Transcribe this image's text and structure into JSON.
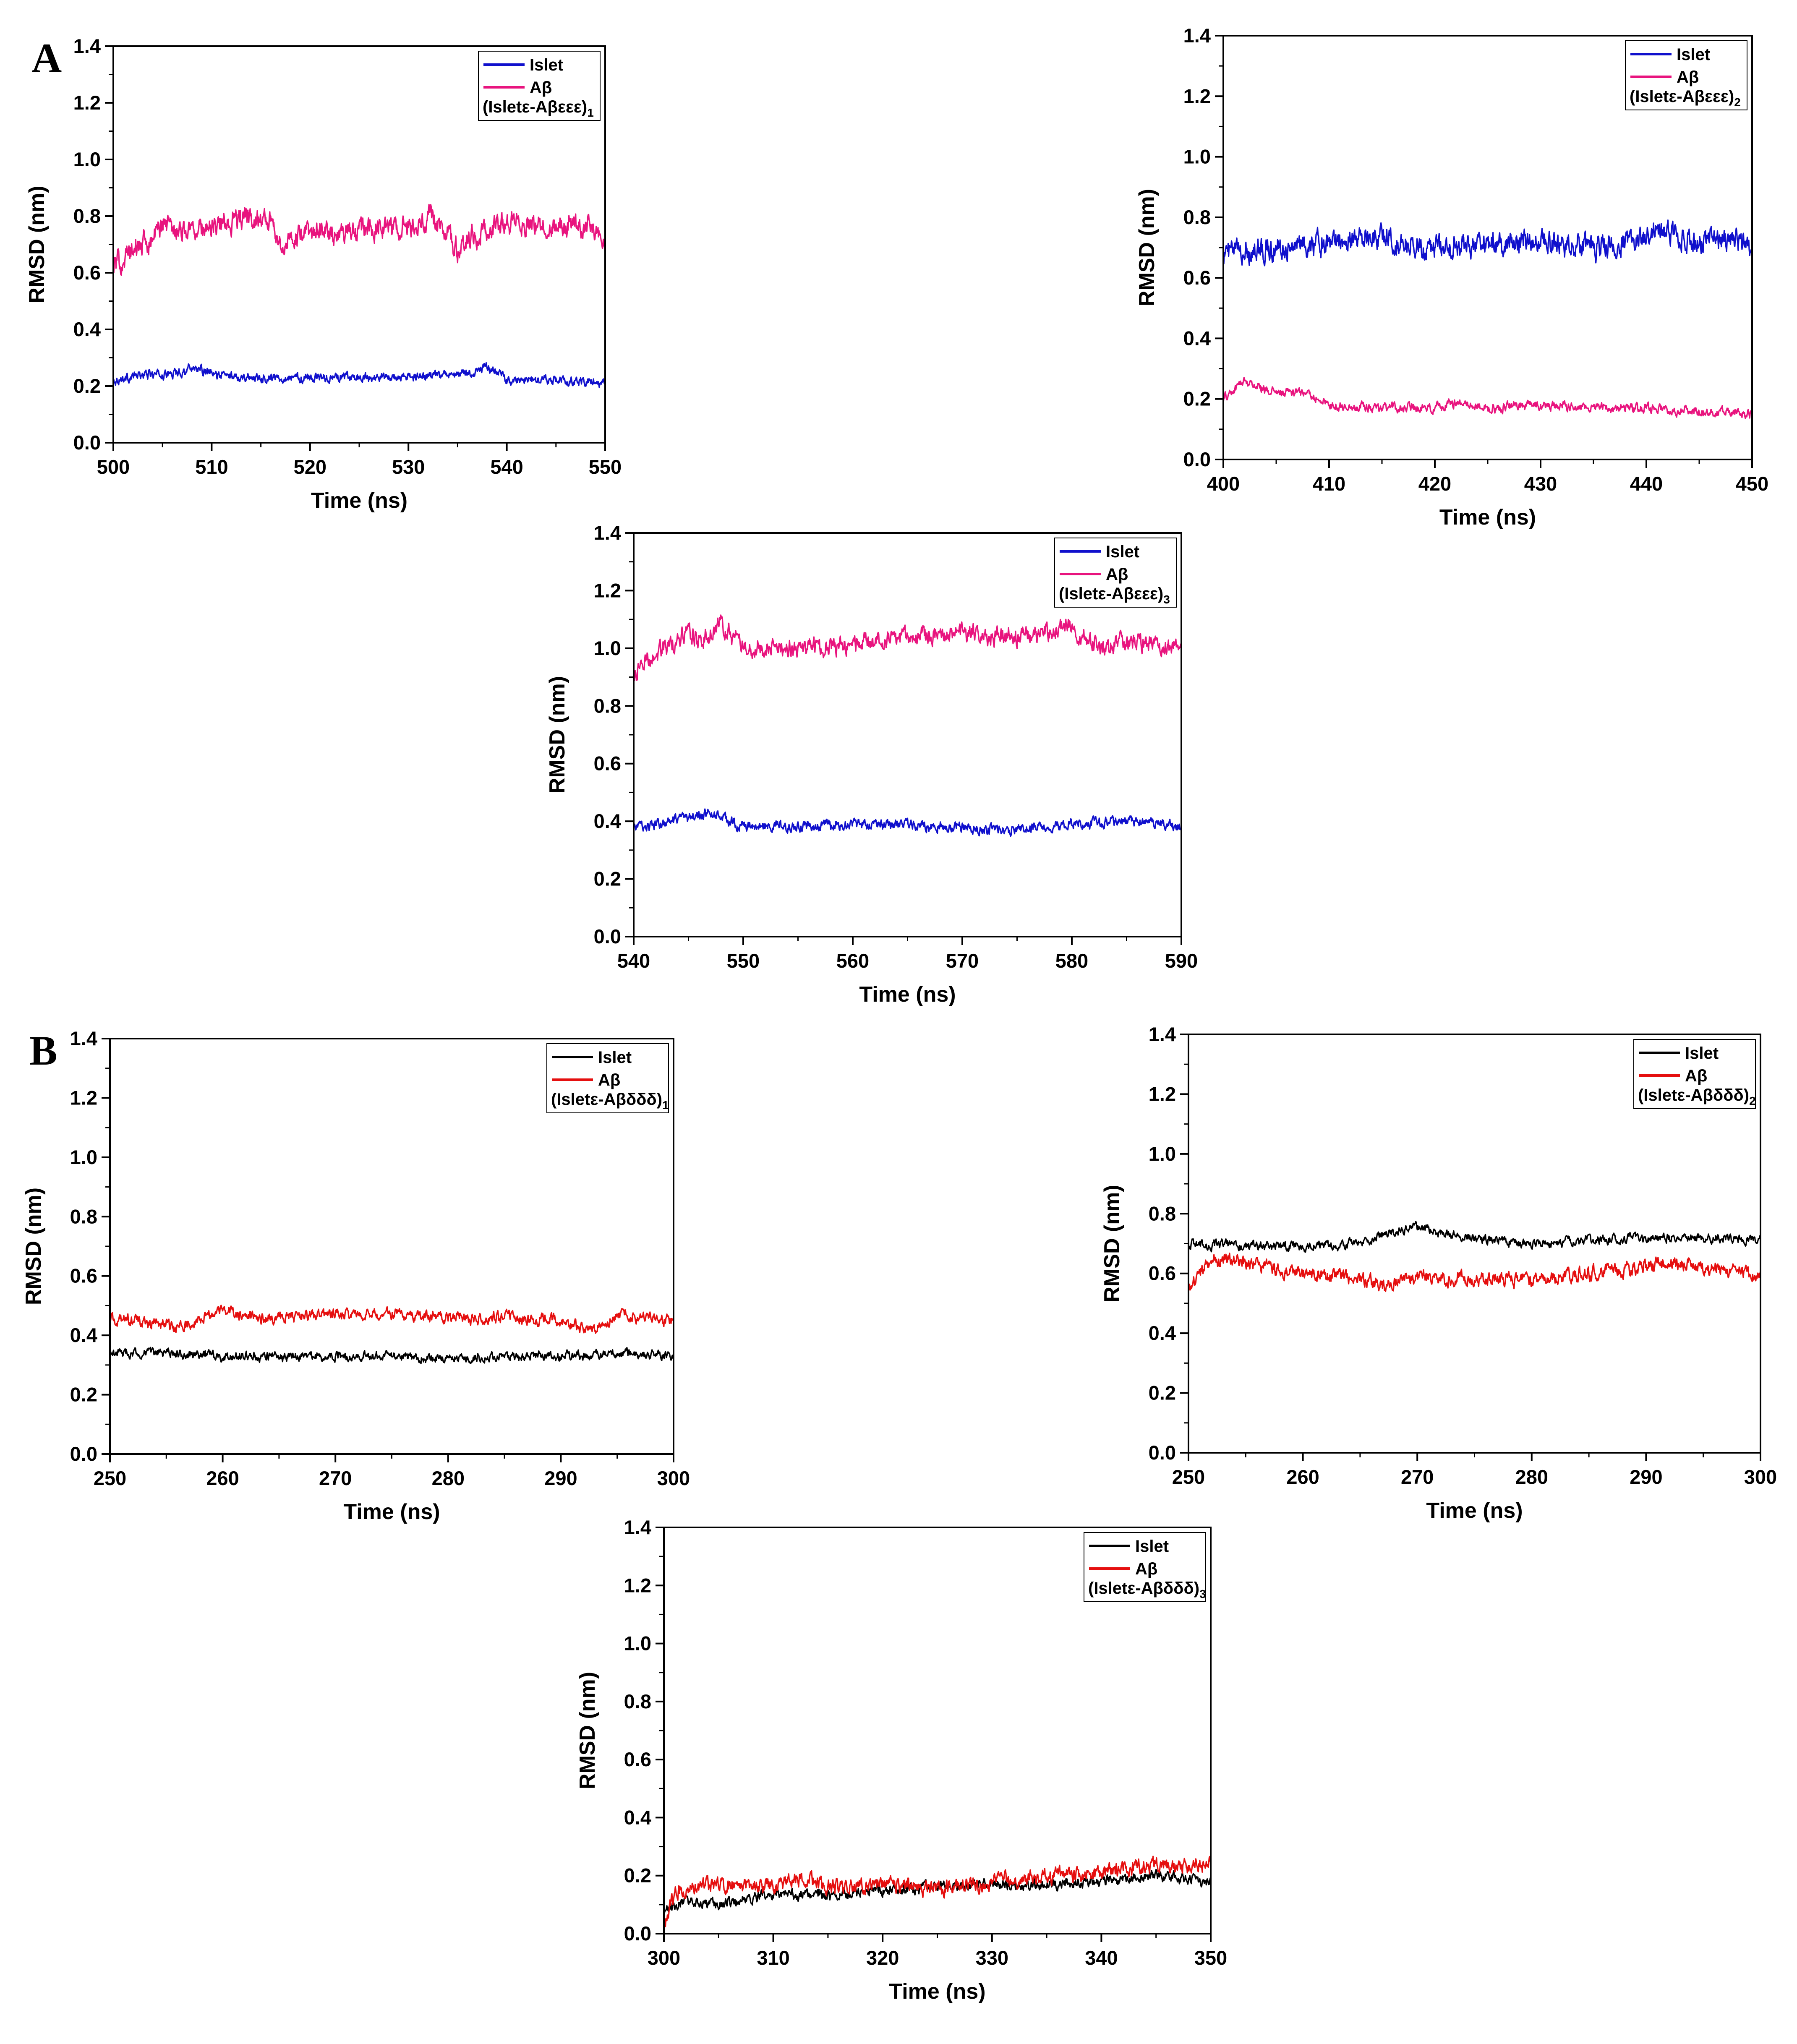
{
  "panel_labels": [
    "A",
    "B"
  ],
  "chart_data": [
    {
      "type": "line",
      "panel": "A",
      "xlabel": "Time (ns)",
      "ylabel": "RMSD (nm)",
      "xlim": [
        500,
        550
      ],
      "ylim": [
        0,
        1.4
      ],
      "xticks": [
        "500",
        "510",
        "520",
        "530",
        "540",
        "550"
      ],
      "yticks": [
        "0.0",
        "0.2",
        "0.4",
        "0.6",
        "0.8",
        "1.0",
        "1.2",
        "1.4"
      ],
      "legend": "top-right",
      "legend_caption": {
        "base": "(Isletε-Aβεεε)",
        "sub": "1"
      },
      "series": [
        {
          "name": "Islet",
          "color": "#1010cc",
          "noise": 0.012,
          "x": [
            500,
            503,
            505,
            507,
            508,
            510,
            515,
            520,
            525,
            530,
            535,
            537,
            538,
            540,
            545,
            550
          ],
          "y": [
            0.22,
            0.24,
            0.24,
            0.25,
            0.27,
            0.24,
            0.23,
            0.23,
            0.23,
            0.23,
            0.24,
            0.25,
            0.27,
            0.22,
            0.22,
            0.21
          ]
        },
        {
          "name": "Aβ",
          "color": "#e8147e",
          "noise": 0.03,
          "x": [
            500,
            502,
            504,
            505,
            507,
            510,
            514,
            516,
            517,
            520,
            525,
            530,
            532,
            534,
            535,
            536,
            538,
            540,
            545,
            548,
            550
          ],
          "y": [
            0.62,
            0.68,
            0.72,
            0.78,
            0.75,
            0.76,
            0.8,
            0.78,
            0.7,
            0.74,
            0.75,
            0.76,
            0.8,
            0.74,
            0.68,
            0.72,
            0.75,
            0.77,
            0.76,
            0.77,
            0.73
          ]
        }
      ]
    },
    {
      "type": "line",
      "panel": "A",
      "xlabel": "Time (ns)",
      "ylabel": "RMSD (nm)",
      "xlim": [
        400,
        450
      ],
      "ylim": [
        0,
        1.4
      ],
      "xticks": [
        "400",
        "410",
        "420",
        "430",
        "440",
        "450"
      ],
      "yticks": [
        "0.0",
        "0.2",
        "0.4",
        "0.6",
        "0.8",
        "1.0",
        "1.2",
        "1.4"
      ],
      "legend": "top-right",
      "legend_caption": {
        "base": "(Isletε-Aβεεε)",
        "sub": "2"
      },
      "series": [
        {
          "name": "Islet",
          "color": "#1010cc",
          "noise": 0.03,
          "x": [
            400,
            405,
            410,
            413,
            415,
            420,
            425,
            430,
            435,
            440,
            441,
            445,
            450
          ],
          "y": [
            0.68,
            0.7,
            0.72,
            0.74,
            0.73,
            0.7,
            0.71,
            0.72,
            0.7,
            0.74,
            0.76,
            0.72,
            0.72
          ]
        },
        {
          "name": "Aβ",
          "color": "#e8147e",
          "noise": 0.012,
          "x": [
            400,
            402,
            405,
            408,
            410,
            415,
            420,
            422,
            425,
            430,
            435,
            440,
            445,
            450
          ],
          "y": [
            0.2,
            0.26,
            0.22,
            0.22,
            0.18,
            0.17,
            0.17,
            0.19,
            0.17,
            0.18,
            0.17,
            0.17,
            0.16,
            0.15
          ]
        }
      ]
    },
    {
      "type": "line",
      "panel": "A",
      "xlabel": "Time (ns)",
      "ylabel": "RMSD (nm)",
      "xlim": [
        540,
        590
      ],
      "ylim": [
        0,
        1.4
      ],
      "xticks": [
        "540",
        "550",
        "560",
        "570",
        "580",
        "590"
      ],
      "yticks": [
        "0.0",
        "0.2",
        "0.4",
        "0.6",
        "0.8",
        "1.0",
        "1.2",
        "1.4"
      ],
      "legend": "top-right",
      "legend_caption": {
        "base": "(Isletε-Aβεεε)",
        "sub": "3"
      },
      "series": [
        {
          "name": "Islet",
          "color": "#1010cc",
          "noise": 0.014,
          "x": [
            540,
            543,
            545,
            547,
            550,
            555,
            560,
            565,
            570,
            575,
            580,
            585,
            590
          ],
          "y": [
            0.38,
            0.39,
            0.41,
            0.43,
            0.38,
            0.38,
            0.39,
            0.39,
            0.38,
            0.37,
            0.39,
            0.4,
            0.38
          ]
        },
        {
          "name": "Aβ",
          "color": "#e8147e",
          "noise": 0.025,
          "x": [
            540,
            541,
            543,
            545,
            546,
            548,
            549,
            550,
            555,
            560,
            565,
            570,
            575,
            580,
            581,
            583,
            585,
            590
          ],
          "y": [
            0.9,
            0.96,
            1.0,
            1.06,
            1.02,
            1.08,
            1.04,
            1.0,
            1.0,
            1.01,
            1.04,
            1.05,
            1.04,
            1.08,
            1.04,
            1.0,
            1.02,
            1.0
          ]
        }
      ]
    },
    {
      "type": "line",
      "panel": "B",
      "xlabel": "Time (ns)",
      "ylabel": "RMSD (nm)",
      "xlim": [
        250,
        300
      ],
      "ylim": [
        0,
        1.4
      ],
      "xticks": [
        "250",
        "260",
        "270",
        "280",
        "290",
        "300"
      ],
      "yticks": [
        "0.0",
        "0.2",
        "0.4",
        "0.6",
        "0.8",
        "1.0",
        "1.2",
        "1.4"
      ],
      "legend": "top-right",
      "legend_caption": {
        "base": "(Isletε-Aβδδδ)",
        "sub": "1"
      },
      "series": [
        {
          "name": "Islet",
          "color": "#000000",
          "noise": 0.012,
          "x": [
            250,
            255,
            260,
            265,
            270,
            275,
            280,
            285,
            290,
            295,
            300
          ],
          "y": [
            0.34,
            0.34,
            0.33,
            0.33,
            0.33,
            0.33,
            0.32,
            0.33,
            0.33,
            0.34,
            0.33
          ]
        },
        {
          "name": "Aβ",
          "color": "#e50f0f",
          "noise": 0.015,
          "x": [
            250,
            255,
            256,
            258,
            260,
            262,
            265,
            270,
            275,
            280,
            285,
            290,
            293,
            295,
            300
          ],
          "y": [
            0.45,
            0.44,
            0.42,
            0.46,
            0.49,
            0.46,
            0.46,
            0.47,
            0.47,
            0.46,
            0.46,
            0.45,
            0.42,
            0.47,
            0.45
          ]
        }
      ]
    },
    {
      "type": "line",
      "panel": "B",
      "xlabel": "Time (ns)",
      "ylabel": "RMSD (nm)",
      "xlim": [
        250,
        300
      ],
      "ylim": [
        0,
        1.4
      ],
      "xticks": [
        "250",
        "260",
        "270",
        "280",
        "290",
        "300"
      ],
      "yticks": [
        "0.0",
        "0.2",
        "0.4",
        "0.6",
        "0.8",
        "1.0",
        "1.2",
        "1.4"
      ],
      "legend": "top-right",
      "legend_caption": {
        "base": "(Isletε-Aβδδδ)",
        "sub": "2"
      },
      "series": [
        {
          "name": "Islet",
          "color": "#000000",
          "noise": 0.012,
          "x": [
            250,
            255,
            260,
            265,
            268,
            270,
            272,
            275,
            280,
            285,
            290,
            295,
            300
          ],
          "y": [
            0.7,
            0.69,
            0.69,
            0.7,
            0.74,
            0.76,
            0.73,
            0.72,
            0.7,
            0.71,
            0.72,
            0.72,
            0.71
          ]
        },
        {
          "name": "Aβ",
          "color": "#e50f0f",
          "noise": 0.018,
          "x": [
            250,
            251,
            252,
            255,
            258,
            260,
            265,
            267,
            270,
            275,
            280,
            285,
            290,
            292,
            295,
            300
          ],
          "y": [
            0.55,
            0.6,
            0.64,
            0.64,
            0.61,
            0.6,
            0.58,
            0.56,
            0.59,
            0.58,
            0.58,
            0.6,
            0.62,
            0.64,
            0.62,
            0.6
          ]
        }
      ]
    },
    {
      "type": "line",
      "panel": "B",
      "xlabel": "Time (ns)",
      "ylabel": "RMSD (nm)",
      "xlim": [
        300,
        350
      ],
      "ylim": [
        0,
        1.4
      ],
      "xticks": [
        "300",
        "310",
        "320",
        "330",
        "340",
        "350"
      ],
      "yticks": [
        "0.0",
        "0.2",
        "0.4",
        "0.6",
        "0.8",
        "1.0",
        "1.2",
        "1.4"
      ],
      "legend": "top-right",
      "legend_caption": {
        "base": "(Isletε-Aβδδδ)",
        "sub": "3"
      },
      "series": [
        {
          "name": "Islet",
          "color": "#000000",
          "noise": 0.014,
          "x": [
            300,
            302,
            305,
            310,
            315,
            320,
            325,
            330,
            335,
            340,
            345,
            350
          ],
          "y": [
            0.08,
            0.11,
            0.1,
            0.14,
            0.13,
            0.15,
            0.16,
            0.17,
            0.17,
            0.18,
            0.2,
            0.18
          ]
        },
        {
          "name": "Aβ",
          "color": "#e50f0f",
          "noise": 0.02,
          "x": [
            300,
            301,
            303,
            305,
            310,
            313,
            315,
            320,
            325,
            330,
            335,
            340,
            345,
            348,
            350
          ],
          "y": [
            0.03,
            0.14,
            0.17,
            0.16,
            0.17,
            0.19,
            0.16,
            0.17,
            0.15,
            0.18,
            0.2,
            0.21,
            0.24,
            0.23,
            0.24
          ]
        }
      ]
    }
  ]
}
